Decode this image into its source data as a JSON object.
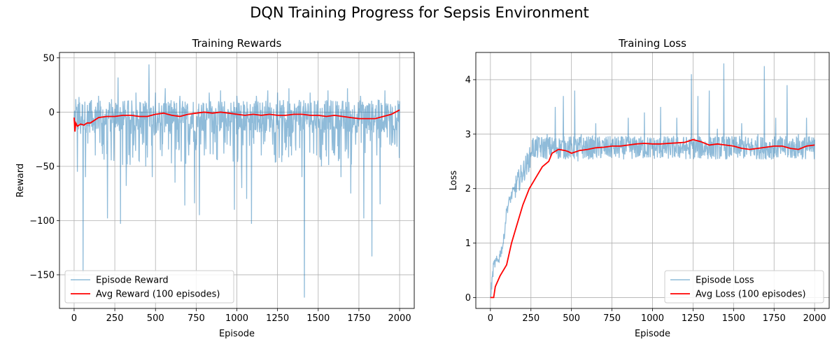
{
  "suptitle": "DQN Training Progress for Sepsis Environment",
  "colors": {
    "episode": "#1f77b4",
    "avg": "#ff0000",
    "grid": "#b0b0b0"
  },
  "chart_data": [
    {
      "type": "line",
      "title": "Training Rewards",
      "xlabel": "Episode",
      "ylabel": "Reward",
      "xlim": [
        -90,
        2090
      ],
      "ylim": [
        -181,
        55
      ],
      "xticks": [
        0,
        250,
        500,
        750,
        1000,
        1250,
        1500,
        1750,
        2000
      ],
      "yticks": [
        -150,
        -100,
        -50,
        0,
        50
      ],
      "grid": true,
      "legend_position": "lower-left",
      "series": [
        {
          "name": "Episode Reward",
          "style": "noisy",
          "alpha": 0.5,
          "points": [
            [
              0,
              -8
            ],
            [
              10,
              12
            ],
            [
              20,
              -55
            ],
            [
              30,
              14
            ],
            [
              40,
              -20
            ],
            [
              55,
              -148
            ],
            [
              70,
              -60
            ],
            [
              100,
              10
            ],
            [
              130,
              -40
            ],
            [
              150,
              15
            ],
            [
              180,
              -30
            ],
            [
              205,
              -98
            ],
            [
              230,
              12
            ],
            [
              260,
              -10
            ],
            [
              270,
              32
            ],
            [
              285,
              -103
            ],
            [
              300,
              10
            ],
            [
              320,
              -68
            ],
            [
              350,
              -20
            ],
            [
              380,
              18
            ],
            [
              400,
              -45
            ],
            [
              420,
              -30
            ],
            [
              440,
              -50
            ],
            [
              460,
              44
            ],
            [
              480,
              -60
            ],
            [
              500,
              18
            ],
            [
              530,
              -35
            ],
            [
              560,
              22
            ],
            [
              590,
              -20
            ],
            [
              620,
              -65
            ],
            [
              650,
              15
            ],
            [
              680,
              -86
            ],
            [
              710,
              -30
            ],
            [
              740,
              -84
            ],
            [
              770,
              -95
            ],
            [
              800,
              -40
            ],
            [
              830,
              18
            ],
            [
              860,
              -20
            ],
            [
              900,
              20
            ],
            [
              940,
              -30
            ],
            [
              985,
              -90
            ],
            [
              1000,
              15
            ],
            [
              1030,
              -70
            ],
            [
              1060,
              -80
            ],
            [
              1090,
              -103
            ],
            [
              1120,
              15
            ],
            [
              1150,
              -40
            ],
            [
              1190,
              20
            ],
            [
              1220,
              -30
            ],
            [
              1250,
              18
            ],
            [
              1280,
              -40
            ],
            [
              1320,
              22
            ],
            [
              1360,
              -30
            ],
            [
              1400,
              -60
            ],
            [
              1415,
              -171
            ],
            [
              1450,
              18
            ],
            [
              1490,
              -40
            ],
            [
              1520,
              -50
            ],
            [
              1560,
              20
            ],
            [
              1600,
              -40
            ],
            [
              1640,
              -60
            ],
            [
              1680,
              22
            ],
            [
              1700,
              -75
            ],
            [
              1730,
              -30
            ],
            [
              1760,
              15
            ],
            [
              1780,
              -98
            ],
            [
              1800,
              -20
            ],
            [
              1830,
              -133
            ],
            [
              1860,
              -40
            ],
            [
              1880,
              -85
            ],
            [
              1910,
              20
            ],
            [
              1940,
              -30
            ],
            [
              1970,
              -30
            ],
            [
              2000,
              10
            ]
          ]
        },
        {
          "name": "Avg Reward (100 episodes)",
          "style": "smooth",
          "points": [
            [
              0,
              -5
            ],
            [
              5,
              -18
            ],
            [
              10,
              -10
            ],
            [
              20,
              -13
            ],
            [
              40,
              -11
            ],
            [
              60,
              -12
            ],
            [
              80,
              -10
            ],
            [
              100,
              -10
            ],
            [
              150,
              -5
            ],
            [
              200,
              -4
            ],
            [
              250,
              -4
            ],
            [
              300,
              -3
            ],
            [
              350,
              -3
            ],
            [
              400,
              -4
            ],
            [
              450,
              -4
            ],
            [
              500,
              -2
            ],
            [
              550,
              -1
            ],
            [
              600,
              -3
            ],
            [
              650,
              -4
            ],
            [
              700,
              -2
            ],
            [
              750,
              -1
            ],
            [
              800,
              0
            ],
            [
              850,
              -1
            ],
            [
              900,
              0
            ],
            [
              950,
              -1
            ],
            [
              1000,
              -2
            ],
            [
              1050,
              -3
            ],
            [
              1100,
              -2
            ],
            [
              1150,
              -3
            ],
            [
              1200,
              -2
            ],
            [
              1250,
              -3
            ],
            [
              1300,
              -3
            ],
            [
              1350,
              -2
            ],
            [
              1400,
              -2
            ],
            [
              1450,
              -3
            ],
            [
              1500,
              -3
            ],
            [
              1550,
              -4
            ],
            [
              1600,
              -3
            ],
            [
              1650,
              -4
            ],
            [
              1700,
              -5
            ],
            [
              1750,
              -6
            ],
            [
              1800,
              -6
            ],
            [
              1850,
              -6
            ],
            [
              1900,
              -4
            ],
            [
              1950,
              -2
            ],
            [
              2000,
              2
            ]
          ]
        }
      ]
    },
    {
      "type": "line",
      "title": "Training Loss",
      "xlabel": "Episode",
      "ylabel": "Loss",
      "xlim": [
        -90,
        2090
      ],
      "ylim": [
        -0.2,
        4.5
      ],
      "xticks": [
        0,
        250,
        500,
        750,
        1000,
        1250,
        1500,
        1750,
        2000
      ],
      "yticks": [
        0,
        1,
        2,
        3,
        4
      ],
      "grid": true,
      "legend_position": "lower-right",
      "series": [
        {
          "name": "Episode Loss",
          "style": "noisy",
          "alpha": 0.5,
          "points": [
            [
              0,
              0
            ],
            [
              20,
              0.6
            ],
            [
              50,
              0.7
            ],
            [
              80,
              1.0
            ],
            [
              100,
              1.6
            ],
            [
              120,
              1.8
            ],
            [
              150,
              2.0
            ],
            [
              200,
              2.3
            ],
            [
              250,
              2.6
            ],
            [
              300,
              2.9
            ],
            [
              350,
              3.0
            ],
            [
              400,
              3.5
            ],
            [
              450,
              3.7
            ],
            [
              500,
              2.8
            ],
            [
              520,
              3.8
            ],
            [
              540,
              2.5
            ],
            [
              560,
              3.0
            ],
            [
              600,
              2.6
            ],
            [
              650,
              3.2
            ],
            [
              700,
              2.7
            ],
            [
              750,
              2.9
            ],
            [
              800,
              2.8
            ],
            [
              850,
              3.3
            ],
            [
              900,
              2.9
            ],
            [
              950,
              3.4
            ],
            [
              1000,
              2.8
            ],
            [
              1050,
              3.5
            ],
            [
              1100,
              2.9
            ],
            [
              1150,
              3.3
            ],
            [
              1200,
              2.8
            ],
            [
              1240,
              4.1
            ],
            [
              1280,
              3.7
            ],
            [
              1300,
              2.9
            ],
            [
              1350,
              3.8
            ],
            [
              1400,
              3.1
            ],
            [
              1440,
              4.3
            ],
            [
              1500,
              2.9
            ],
            [
              1550,
              3.2
            ],
            [
              1600,
              2.7
            ],
            [
              1650,
              3.0
            ],
            [
              1690,
              4.25
            ],
            [
              1720,
              2.8
            ],
            [
              1760,
              3.3
            ],
            [
              1800,
              2.7
            ],
            [
              1830,
              3.9
            ],
            [
              1870,
              2.8
            ],
            [
              1900,
              3.0
            ],
            [
              1950,
              3.3
            ],
            [
              2000,
              2.9
            ]
          ]
        },
        {
          "name": "Avg Loss (100 episodes)",
          "style": "smooth",
          "points": [
            [
              0,
              0
            ],
            [
              10,
              0
            ],
            [
              20,
              0
            ],
            [
              30,
              0.2
            ],
            [
              60,
              0.4
            ],
            [
              100,
              0.6
            ],
            [
              130,
              1.0
            ],
            [
              160,
              1.3
            ],
            [
              200,
              1.7
            ],
            [
              240,
              2.0
            ],
            [
              280,
              2.2
            ],
            [
              320,
              2.4
            ],
            [
              360,
              2.5
            ],
            [
              380,
              2.65
            ],
            [
              420,
              2.72
            ],
            [
              460,
              2.7
            ],
            [
              480,
              2.68
            ],
            [
              500,
              2.65
            ],
            [
              550,
              2.7
            ],
            [
              600,
              2.72
            ],
            [
              650,
              2.75
            ],
            [
              700,
              2.76
            ],
            [
              750,
              2.78
            ],
            [
              800,
              2.78
            ],
            [
              850,
              2.8
            ],
            [
              900,
              2.82
            ],
            [
              950,
              2.83
            ],
            [
              1000,
              2.82
            ],
            [
              1050,
              2.82
            ],
            [
              1100,
              2.83
            ],
            [
              1150,
              2.84
            ],
            [
              1200,
              2.85
            ],
            [
              1250,
              2.9
            ],
            [
              1300,
              2.86
            ],
            [
              1350,
              2.8
            ],
            [
              1400,
              2.82
            ],
            [
              1450,
              2.8
            ],
            [
              1500,
              2.78
            ],
            [
              1550,
              2.74
            ],
            [
              1600,
              2.72
            ],
            [
              1650,
              2.74
            ],
            [
              1700,
              2.76
            ],
            [
              1750,
              2.78
            ],
            [
              1800,
              2.78
            ],
            [
              1850,
              2.74
            ],
            [
              1900,
              2.72
            ],
            [
              1950,
              2.78
            ],
            [
              2000,
              2.8
            ]
          ]
        }
      ]
    }
  ]
}
